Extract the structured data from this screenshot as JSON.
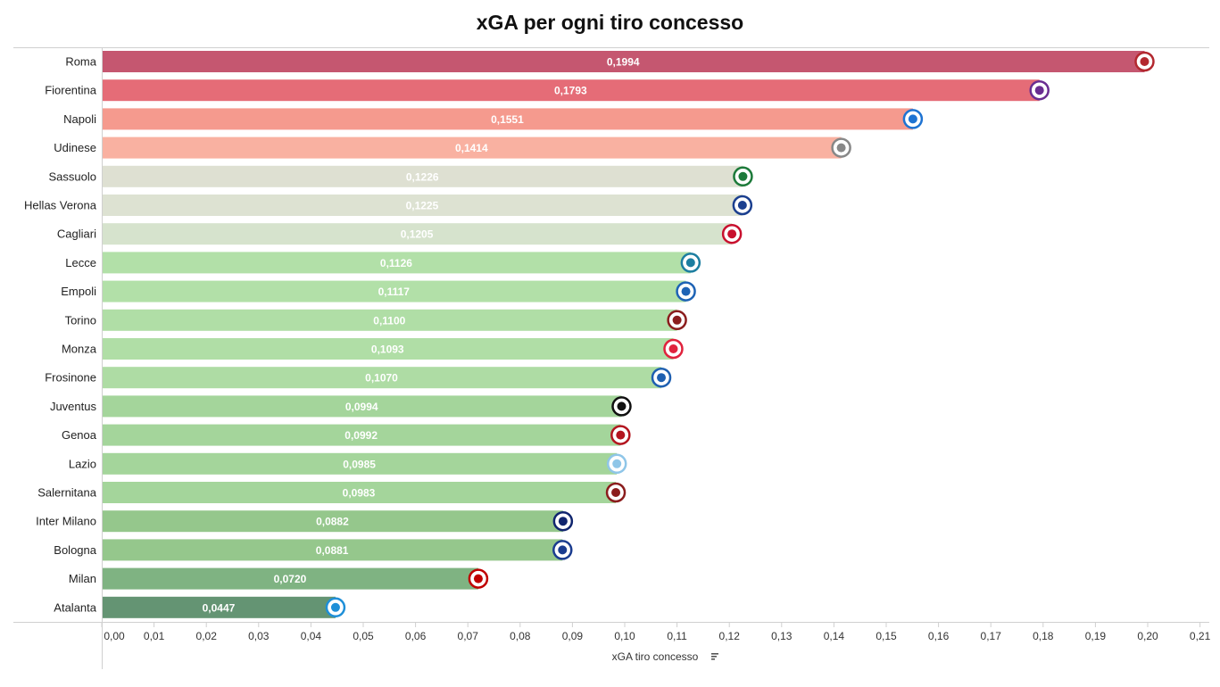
{
  "chart_data": {
    "type": "bar",
    "orientation": "horizontal",
    "title": "xGA per ogni tiro concesso",
    "xlabel": "xGA tiro concesso",
    "ylabel": "",
    "xlim": [
      0,
      0.21
    ],
    "xticks": [
      "0,00",
      "0,01",
      "0,02",
      "0,03",
      "0,04",
      "0,05",
      "0,06",
      "0,07",
      "0,08",
      "0,09",
      "0,10",
      "0,11",
      "0,12",
      "0,13",
      "0,14",
      "0,15",
      "0,16",
      "0,17",
      "0,18",
      "0,19",
      "0,20",
      "0,21"
    ],
    "grid": false,
    "sorted": "descending",
    "categories": [
      "Roma",
      "Fiorentina",
      "Napoli",
      "Udinese",
      "Sassuolo",
      "Hellas Verona",
      "Cagliari",
      "Lecce",
      "Empoli",
      "Torino",
      "Monza",
      "Frosinone",
      "Juventus",
      "Genoa",
      "Lazio",
      "Salernitana",
      "Inter Milano",
      "Bologna",
      "Milan",
      "Atalanta"
    ],
    "values": [
      0.1994,
      0.1793,
      0.1551,
      0.1414,
      0.1226,
      0.1225,
      0.1205,
      0.1126,
      0.1117,
      0.11,
      0.1093,
      0.107,
      0.0994,
      0.0992,
      0.0985,
      0.0983,
      0.0882,
      0.0881,
      0.072,
      0.0447
    ],
    "labels": [
      "0,1994",
      "0,1793",
      "0,1551",
      "0,1414",
      "0,1226",
      "0,1225",
      "0,1205",
      "0,1126",
      "0,1117",
      "0,1100",
      "0,1093",
      "0,1070",
      "0,0994",
      "0,0992",
      "0,0985",
      "0,0983",
      "0,0882",
      "0,0881",
      "0,0720",
      "0,0447"
    ],
    "colors": [
      "#c55770",
      "#e56c77",
      "#f59a8e",
      "#f9b1a1",
      "#dee0d2",
      "#dde2d2",
      "#d6e3cd",
      "#b2e0a8",
      "#b2e0a8",
      "#b0dea6",
      "#b0dea6",
      "#aedca4",
      "#a4d59b",
      "#a4d59b",
      "#a4d59b",
      "#a4d59b",
      "#95c78c",
      "#95c78c",
      "#7fb382",
      "#649473"
    ],
    "logo_colors": [
      "#b3282f",
      "#6a2d91",
      "#1e73d2",
      "#888888",
      "#1d7a3a",
      "#1b3f8f",
      "#c8102e",
      "#1c7ea0",
      "#1e63b5",
      "#8b1d1d",
      "#e0233d",
      "#1e5fb0",
      "#111111",
      "#b3151f",
      "#8fc6e8",
      "#8b1d1d",
      "#10256e",
      "#1a3c8f",
      "#c00000",
      "#1e8fd8"
    ]
  }
}
